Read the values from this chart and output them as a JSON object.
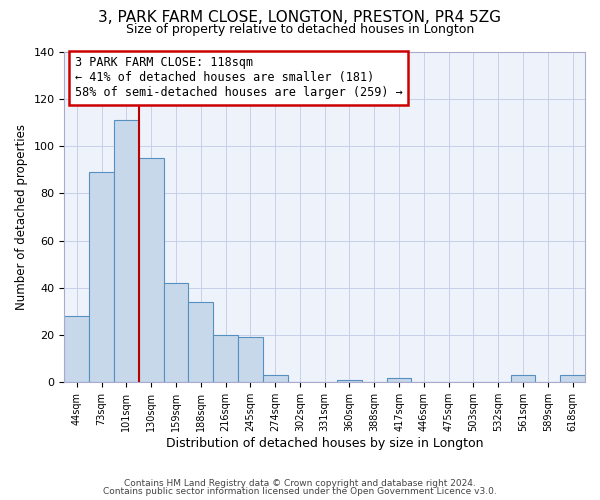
{
  "title": "3, PARK FARM CLOSE, LONGTON, PRESTON, PR4 5ZG",
  "subtitle": "Size of property relative to detached houses in Longton",
  "xlabel": "Distribution of detached houses by size in Longton",
  "ylabel": "Number of detached properties",
  "bar_labels": [
    "44sqm",
    "73sqm",
    "101sqm",
    "130sqm",
    "159sqm",
    "188sqm",
    "216sqm",
    "245sqm",
    "274sqm",
    "302sqm",
    "331sqm",
    "360sqm",
    "388sqm",
    "417sqm",
    "446sqm",
    "475sqm",
    "503sqm",
    "532sqm",
    "561sqm",
    "589sqm",
    "618sqm"
  ],
  "bar_values": [
    28,
    89,
    111,
    95,
    42,
    34,
    20,
    19,
    3,
    0,
    0,
    1,
    0,
    2,
    0,
    0,
    0,
    0,
    3,
    0,
    3
  ],
  "bar_color": "#c8d8eb",
  "bar_edge_color": "#5590c0",
  "vline_x": 3.0,
  "vline_color": "#bb0000",
  "annotation_text": "3 PARK FARM CLOSE: 118sqm\n← 41% of detached houses are smaller (181)\n58% of semi-detached houses are larger (259) →",
  "annotation_box_color": "#ffffff",
  "annotation_box_edge": "#cc0000",
  "ylim": [
    0,
    140
  ],
  "yticks": [
    0,
    20,
    40,
    60,
    80,
    100,
    120,
    140
  ],
  "background_color": "#ffffff",
  "plot_bg_color": "#eef2fb",
  "footer_line1": "Contains HM Land Registry data © Crown copyright and database right 2024.",
  "footer_line2": "Contains public sector information licensed under the Open Government Licence v3.0.",
  "grid_color": "#c8d0e8"
}
